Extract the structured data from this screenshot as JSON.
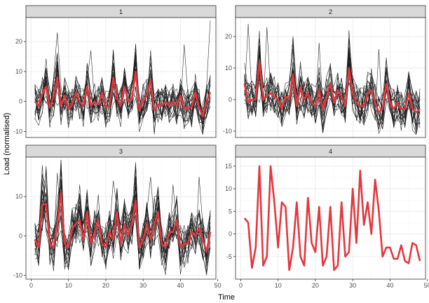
{
  "chart_data": {
    "type": "line",
    "xlabel": "Time",
    "ylabel": "Load (normalised)",
    "colors": {
      "highlight": "#e3383d",
      "members": "#1a1a1a",
      "strip": "#d9d9d9",
      "grid": "#ebebeb"
    },
    "panels": [
      {
        "label": "1",
        "xlim": [
          -1.4,
          49.5
        ],
        "ylim": [
          -12,
          28
        ],
        "yticks": [
          -10,
          0,
          10,
          20
        ],
        "member_count": 20,
        "member_amplitude": 6,
        "highlight": [
          0,
          -1.5,
          2.5,
          5,
          -2,
          1.5,
          8,
          -1.5,
          2,
          -2.5,
          -1,
          3,
          0,
          -1.5,
          5,
          -1.5,
          0,
          -1,
          3,
          -2,
          -1.5,
          8,
          1,
          -1.5,
          5,
          0,
          1,
          10,
          -3,
          0,
          2,
          7,
          -3,
          -1,
          -1.5,
          0,
          -1.5,
          0,
          -1.5,
          2,
          -2.5,
          -2,
          -2,
          3,
          -2,
          -5,
          0,
          3
        ],
        "spikes": [
          [
            7,
            23
          ],
          [
            16,
            17
          ],
          [
            22,
            17
          ],
          [
            41,
            19
          ],
          [
            48,
            27
          ]
        ]
      },
      {
        "label": "2",
        "xlim": [
          -1.4,
          49.5
        ],
        "ylim": [
          -12,
          26
        ],
        "yticks": [
          -10,
          0,
          10,
          20
        ],
        "member_count": 20,
        "member_amplitude": 6,
        "highlight": [
          5,
          -1,
          0,
          0,
          12,
          0,
          1,
          2,
          1,
          0,
          -3,
          1,
          0,
          8,
          -2,
          4,
          0,
          2,
          -1,
          -2,
          3,
          -3,
          1,
          5,
          -1,
          3,
          1,
          -2,
          10,
          2,
          -1,
          -2,
          -2,
          2,
          3,
          -1,
          -4,
          -3,
          5,
          -1,
          -3,
          -1,
          -3,
          -3,
          2,
          -3,
          -4,
          -3
        ],
        "spikes": [
          [
            2,
            24
          ],
          [
            7,
            23
          ],
          [
            14,
            20
          ],
          [
            21,
            18
          ],
          [
            29,
            22
          ],
          [
            37,
            16
          ]
        ]
      },
      {
        "label": "3",
        "xlim": [
          -1.4,
          49.5
        ],
        "ylim": [
          -11,
          20
        ],
        "yticks": [
          -10,
          0,
          10
        ],
        "member_count": 20,
        "member_amplitude": 5,
        "highlight": [
          -1,
          -3,
          8,
          8,
          -2,
          -3,
          3,
          11,
          -2,
          -3,
          2,
          3,
          4,
          -1,
          6,
          -2,
          1,
          4,
          -2,
          -3,
          1,
          -1,
          6,
          -2,
          3,
          0,
          3,
          9,
          -3,
          -1,
          3,
          -1,
          3,
          6,
          -2,
          -3,
          1,
          1,
          4,
          -3,
          -2,
          -2,
          1,
          0,
          2,
          -1,
          -4,
          1
        ],
        "spikes": [
          [
            3,
            18
          ],
          [
            7,
            16
          ],
          [
            13,
            13
          ],
          [
            22,
            14
          ],
          [
            32,
            15
          ],
          [
            38,
            13
          ],
          [
            45,
            15
          ]
        ]
      },
      {
        "label": "4",
        "xlim": [
          -1.4,
          49.5
        ],
        "ylim": [
          -10,
          17
        ],
        "yticks": [
          -5,
          0,
          5,
          10,
          15
        ],
        "member_count": 0,
        "member_amplitude": 0,
        "highlight": [
          3.5,
          2.5,
          -7.5,
          -3,
          15,
          -7,
          -5,
          15,
          7,
          -3,
          7,
          6,
          -8,
          -3,
          7,
          -5,
          -7,
          8,
          -2,
          -4,
          6,
          -7,
          -5,
          6,
          -8,
          -7,
          7,
          -5,
          -4,
          10,
          -2,
          14,
          2,
          7,
          0,
          12,
          5,
          -5,
          -3,
          -3,
          -5.5,
          -5.5,
          -2.5,
          -6,
          -6.5,
          -2,
          -2.5,
          -6
        ]
      }
    ],
    "x": [
      1,
      2,
      3,
      4,
      5,
      6,
      7,
      8,
      9,
      10,
      11,
      12,
      13,
      14,
      15,
      16,
      17,
      18,
      19,
      20,
      21,
      22,
      23,
      24,
      25,
      26,
      27,
      28,
      29,
      30,
      31,
      32,
      33,
      34,
      35,
      36,
      37,
      38,
      39,
      40,
      41,
      42,
      43,
      44,
      45,
      46,
      47,
      48
    ],
    "xticks": [
      0,
      10,
      20,
      30,
      40,
      50
    ],
    "grid": true,
    "legend": "none"
  }
}
